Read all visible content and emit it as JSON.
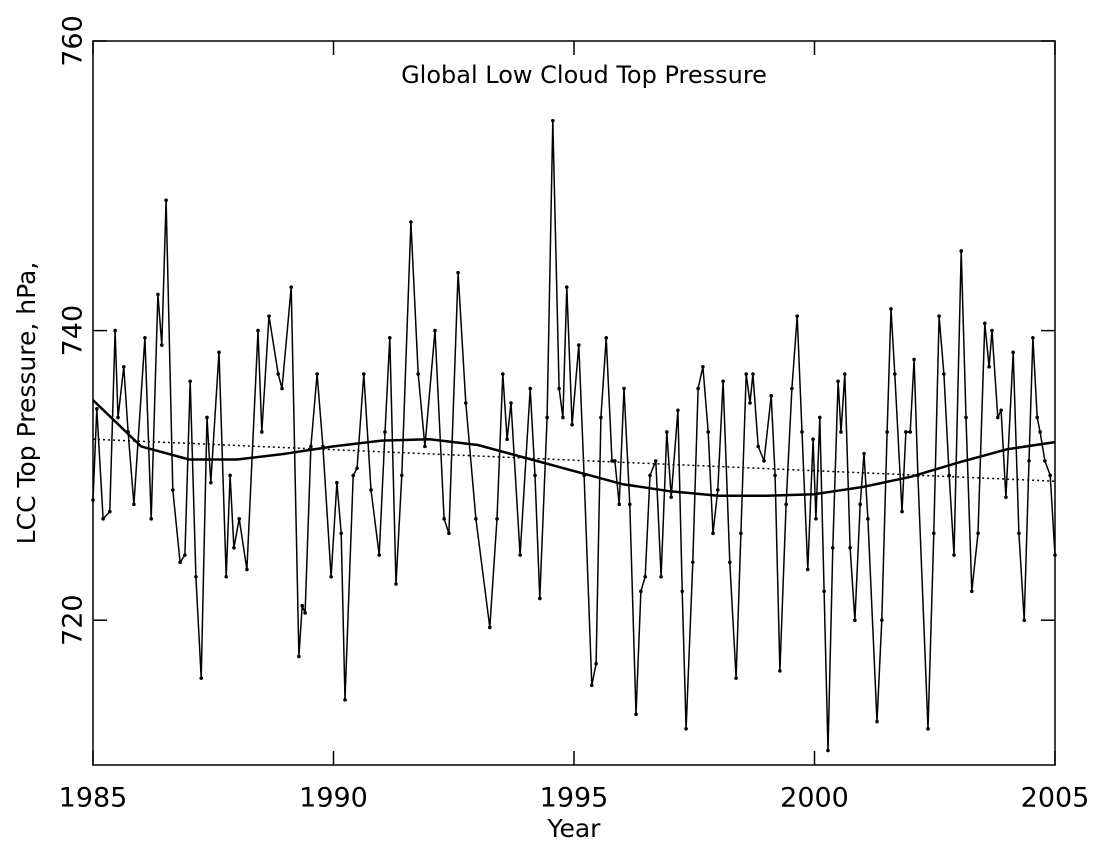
{
  "chart_data": {
    "type": "line",
    "title": "Global Low Cloud Top Pressure",
    "xlabel": "Year",
    "ylabel": "LCC Top Pressure, hPa,",
    "xlim": [
      1985,
      2005
    ],
    "xticks": [
      1985,
      1990,
      1995,
      2000,
      2005
    ],
    "ylim": [
      710,
      760
    ],
    "yticks": [
      720,
      740,
      760
    ],
    "grid": false,
    "series": [
      {
        "color": "#000000",
        "style": "solid",
        "markers": true,
        "width": 1.5,
        "x": [
          1985.0,
          1985.08,
          1985.21,
          1985.35,
          1985.46,
          1985.52,
          1985.64,
          1985.73,
          1985.85,
          1986.08,
          1986.21,
          1986.35,
          1986.43,
          1986.52,
          1986.66,
          1986.81,
          1986.91,
          1987.02,
          1987.14,
          1987.25,
          1987.37,
          1987.45,
          1987.62,
          1987.77,
          1987.85,
          1987.93,
          1988.04,
          1988.2,
          1988.43,
          1988.51,
          1988.66,
          1988.85,
          1988.93,
          1989.12,
          1989.28,
          1989.35,
          1989.41,
          1989.53,
          1989.66,
          1989.78,
          1989.95,
          1990.07,
          1990.16,
          1990.24,
          1990.41,
          1990.49,
          1990.63,
          1990.78,
          1990.95,
          1991.07,
          1991.17,
          1991.3,
          1991.42,
          1991.61,
          1991.76,
          1991.9,
          1992.11,
          1992.3,
          1992.4,
          1992.59,
          1992.75,
          1992.96,
          1993.25,
          1993.4,
          1993.52,
          1993.61,
          1993.69,
          1993.88,
          1994.09,
          1994.19,
          1994.29,
          1994.44,
          1994.56,
          1994.69,
          1994.77,
          1994.85,
          1994.96,
          1995.1,
          1995.21,
          1995.37,
          1995.46,
          1995.56,
          1995.67,
          1995.79,
          1995.85,
          1995.94,
          1996.04,
          1996.16,
          1996.29,
          1996.39,
          1996.48,
          1996.58,
          1996.7,
          1996.81,
          1996.93,
          1997.02,
          1997.16,
          1997.25,
          1997.33,
          1997.47,
          1997.58,
          1997.68,
          1997.79,
          1997.89,
          1997.99,
          1998.1,
          1998.24,
          1998.37,
          1998.47,
          1998.58,
          1998.66,
          1998.72,
          1998.83,
          1998.95,
          1999.1,
          1999.18,
          1999.28,
          1999.41,
          1999.53,
          1999.64,
          1999.74,
          1999.86,
          1999.97,
          2000.03,
          2000.11,
          2000.2,
          2000.28,
          2000.38,
          2000.49,
          2000.55,
          2000.63,
          2000.74,
          2000.84,
          2000.95,
          2001.03,
          2001.11,
          2001.3,
          2001.4,
          2001.51,
          2001.59,
          2001.67,
          2001.82,
          2001.9,
          2001.99,
          2002.07,
          2002.15,
          2002.36,
          2002.48,
          2002.59,
          2002.69,
          2002.8,
          2002.9,
          2003.05,
          2003.15,
          2003.27,
          2003.4,
          2003.54,
          2003.63,
          2003.69,
          2003.81,
          2003.88,
          2003.98,
          2004.13,
          2004.25,
          2004.36,
          2004.46,
          2004.54,
          2004.63,
          2004.69,
          2004.79,
          2004.9,
          2005.0
        ],
        "values": [
          728.3,
          734.6,
          727,
          727.5,
          740,
          734,
          737.5,
          733,
          728,
          739.5,
          727,
          742.5,
          739,
          749,
          729,
          724,
          724.5,
          736.5,
          723,
          716,
          734,
          729.5,
          738.5,
          723,
          730,
          725,
          727,
          723.5,
          740,
          733,
          741,
          737,
          736,
          743,
          717.5,
          721,
          720.5,
          732,
          737,
          732,
          723,
          729.5,
          726,
          714.5,
          730,
          730.5,
          737,
          729,
          724.5,
          733,
          739.5,
          722.5,
          730,
          747.5,
          737,
          732,
          740,
          727,
          726,
          744,
          735,
          727,
          719.5,
          727,
          737,
          732.5,
          735,
          724.5,
          736,
          730,
          721.5,
          734,
          754.5,
          736,
          734,
          743,
          733.5,
          739,
          730,
          715.5,
          717,
          734,
          739.5,
          731,
          731,
          728,
          736,
          728,
          713.5,
          722,
          723,
          730,
          731,
          723,
          733,
          728.5,
          734.5,
          722,
          712.5,
          724,
          736,
          737.5,
          733,
          726,
          729,
          736.5,
          724,
          716,
          726,
          737,
          735,
          737,
          732,
          731,
          735.5,
          730,
          716.5,
          728,
          736,
          741,
          733,
          723.5,
          732.5,
          727,
          734,
          722,
          711,
          725,
          736.5,
          733,
          737,
          725,
          720,
          728,
          731.5,
          727,
          713,
          720,
          733,
          741.5,
          737,
          727.5,
          733,
          733,
          738,
          730,
          712.5,
          726,
          741,
          737,
          730,
          724.5,
          745.5,
          734,
          722,
          726,
          740.5,
          737.5,
          740,
          734,
          734.5,
          728.5,
          738.5,
          726,
          720,
          731,
          739.5,
          734,
          733,
          731,
          730,
          724.5
        ]
      },
      {
        "color": "#000000",
        "style": "solid",
        "markers": false,
        "width": 2.5,
        "x": [
          1985,
          1986,
          1987,
          1988,
          1989,
          1990,
          1991,
          1992,
          1993,
          1994,
          1995,
          1996,
          1997,
          1998,
          1999,
          2000,
          2001,
          2002,
          2003,
          2004,
          2005
        ],
        "values": [
          735.2,
          732,
          731.1,
          731.1,
          731.5,
          732,
          732.4,
          732.5,
          732.1,
          731.2,
          730.3,
          729.4,
          728.9,
          728.6,
          728.6,
          728.7,
          729.2,
          729.9,
          730.9,
          731.8,
          732.3
        ]
      },
      {
        "color": "#000000",
        "style": "dotted",
        "markers": false,
        "width": 1.5,
        "x": [
          1985,
          2005
        ],
        "values": [
          732.5,
          729.6
        ]
      }
    ]
  }
}
